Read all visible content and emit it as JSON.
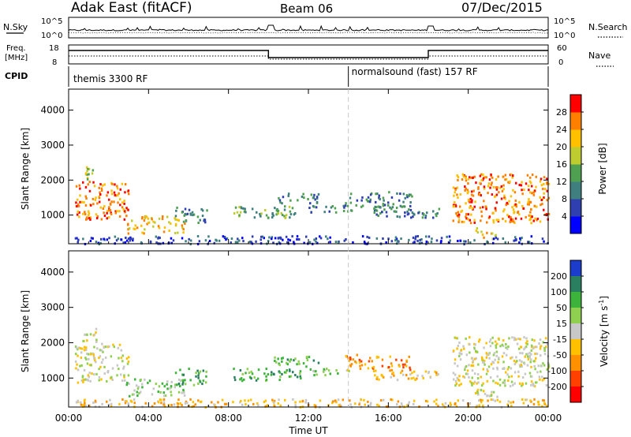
{
  "header": {
    "station": "Adak East (fitACF)",
    "beam": "Beam 06",
    "date": "07/Dec/2015"
  },
  "top_panel": {
    "nsky_label": "N.Sky",
    "nsky_ticks": [
      "10^5",
      "10^0"
    ],
    "nsearch_label": "N.Search",
    "freq_label_line1": "Freq.",
    "freq_label_line2": "[MHz]",
    "freq_ticks": [
      "18",
      "8"
    ],
    "nave_ticks": [
      "60",
      "0"
    ],
    "nave_label": "Nave",
    "cpid_label": "CPID",
    "cpid_segments": [
      {
        "start_hour": 0,
        "end_hour": 14,
        "text": "themis 3300 RF"
      },
      {
        "start_hour": 14,
        "end_hour": 24,
        "text": "normalsound (fast) 157 RF"
      }
    ]
  },
  "chart_data": [
    {
      "type": "heatmap",
      "ylabel": "Slant Range [km]",
      "xlim": [
        0,
        24
      ],
      "ylim": [
        180,
        4600
      ],
      "yticks": [
        "1000",
        "2000",
        "3000",
        "4000"
      ],
      "colorbar": {
        "label": "Power [dB]",
        "ticks": [
          "4",
          "8",
          "12",
          "16",
          "20",
          "24",
          "28"
        ],
        "colors": [
          "#0000ff",
          "#2f3fb0",
          "#3f7f7f",
          "#4fa050",
          "#bfcc30",
          "#ffc000",
          "#ff8000",
          "#ff0000"
        ]
      },
      "regions": [
        {
          "t0": 0.3,
          "t1": 3.0,
          "r0": 900,
          "r1": 2000,
          "level": 6
        },
        {
          "t0": 0.6,
          "t1": 1.4,
          "r0": 2050,
          "r1": 2450,
          "level": 4
        },
        {
          "t0": 2.8,
          "t1": 5.8,
          "r0": 500,
          "r1": 1000,
          "level": 5
        },
        {
          "t0": 5.3,
          "t1": 6.9,
          "r0": 800,
          "r1": 1300,
          "level": 2
        },
        {
          "t0": 8.2,
          "t1": 11.6,
          "r0": 950,
          "r1": 1300,
          "level": 3
        },
        {
          "t0": 10.2,
          "t1": 12.5,
          "r0": 1350,
          "r1": 1650,
          "level": 2
        },
        {
          "t0": 12.0,
          "t1": 14.2,
          "r0": 1100,
          "r1": 1300,
          "level": 2
        },
        {
          "t0": 13.8,
          "t1": 17.2,
          "r0": 1250,
          "r1": 1700,
          "level": 2
        },
        {
          "t0": 15.2,
          "t1": 18.5,
          "r0": 950,
          "r1": 1250,
          "level": 2
        },
        {
          "t0": 19.2,
          "t1": 24.0,
          "r0": 800,
          "r1": 2200,
          "level": 6
        },
        {
          "t0": 20.3,
          "t1": 21.5,
          "r0": 350,
          "r1": 700,
          "level": 5
        },
        {
          "t0": 0.2,
          "t1": 24.0,
          "r0": 200,
          "r1": 430,
          "level": 1
        }
      ]
    },
    {
      "type": "heatmap",
      "ylabel": "Slant Range [km]",
      "xlabel": "Time UT",
      "xlim": [
        0,
        24
      ],
      "ylim": [
        180,
        4600
      ],
      "xticks": [
        "00:00",
        "04:00",
        "08:00",
        "12:00",
        "16:00",
        "20:00",
        "00:00"
      ],
      "yticks": [
        "1000",
        "2000",
        "3000",
        "4000"
      ],
      "colorbar": {
        "label": "Velocity [m s",
        "label_superscript": "-1",
        "label_end": "]",
        "ticks": [
          "200",
          "100",
          "50",
          "15",
          "-15",
          "-50",
          "-100",
          "-200"
        ],
        "colors": [
          "#1c3ccc",
          "#2a7f60",
          "#3cb43c",
          "#90d050",
          "#c8c8c8",
          "#ffc000",
          "#ff9000",
          "#ff4000",
          "#ff0000"
        ]
      },
      "regions": [
        {
          "t0": 0.3,
          "t1": 3.0,
          "r0": 900,
          "r1": 2000,
          "level": 4
        },
        {
          "t0": 0.6,
          "t1": 1.4,
          "r0": 2050,
          "r1": 2450,
          "level": 4
        },
        {
          "t0": 2.8,
          "t1": 5.8,
          "r0": 500,
          "r1": 1000,
          "level": 3
        },
        {
          "t0": 5.3,
          "t1": 6.9,
          "r0": 800,
          "r1": 1300,
          "level": 2
        },
        {
          "t0": 8.2,
          "t1": 11.6,
          "r0": 950,
          "r1": 1300,
          "level": 2
        },
        {
          "t0": 10.2,
          "t1": 12.5,
          "r0": 1350,
          "r1": 1650,
          "level": 2
        },
        {
          "t0": 12.0,
          "t1": 14.2,
          "r0": 1100,
          "r1": 1300,
          "level": 3
        },
        {
          "t0": 13.8,
          "t1": 17.2,
          "r0": 1250,
          "r1": 1700,
          "level": 6
        },
        {
          "t0": 15.2,
          "t1": 18.5,
          "r0": 950,
          "r1": 1250,
          "level": 5
        },
        {
          "t0": 19.2,
          "t1": 24.0,
          "r0": 800,
          "r1": 2200,
          "level": 4
        },
        {
          "t0": 20.3,
          "t1": 21.5,
          "r0": 350,
          "r1": 700,
          "level": 4
        },
        {
          "t0": 0.2,
          "t1": 24.0,
          "r0": 200,
          "r1": 430,
          "level": 5
        }
      ]
    }
  ]
}
